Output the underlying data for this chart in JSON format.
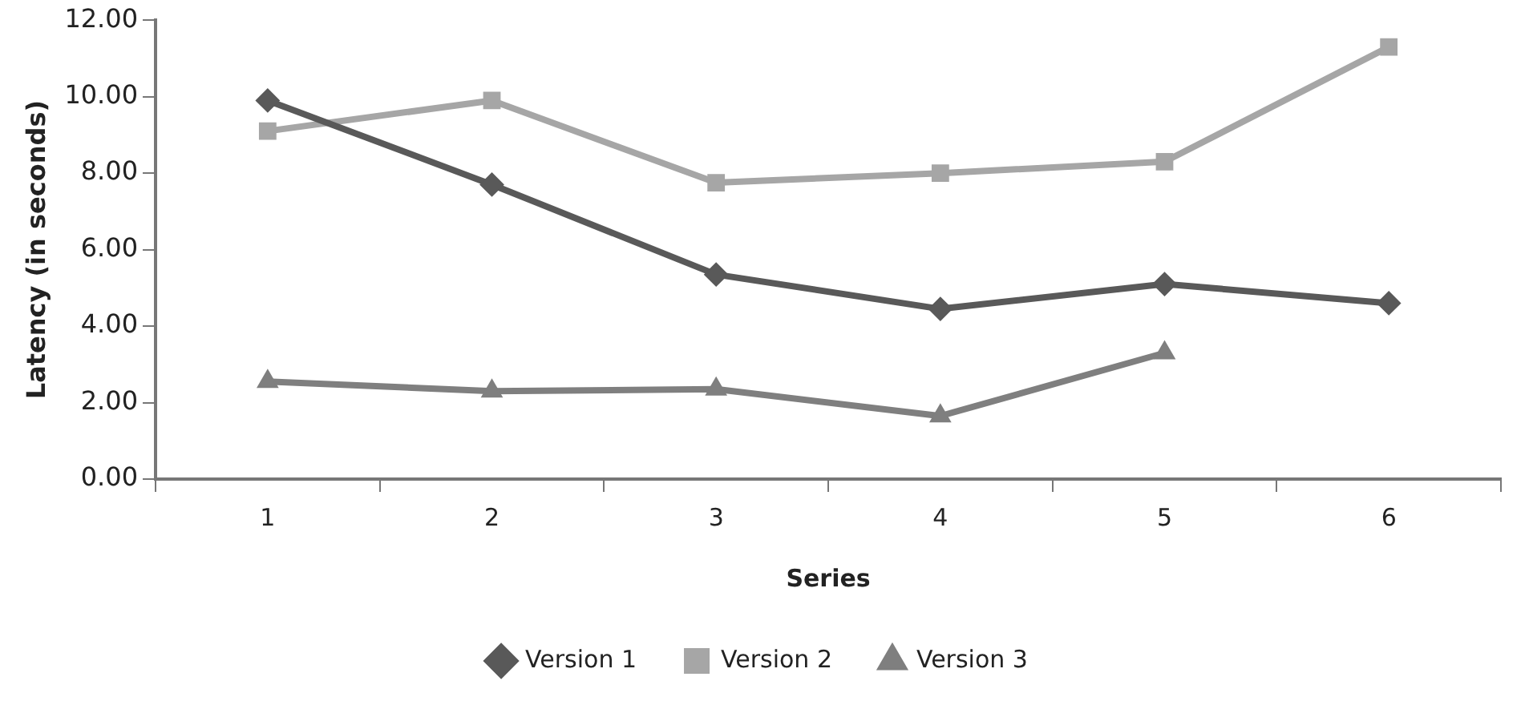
{
  "chart_data": {
    "type": "line",
    "xlabel": "Series",
    "ylabel": "Latency (in seconds)",
    "categories": [
      "1",
      "2",
      "3",
      "4",
      "5",
      "6"
    ],
    "series": [
      {
        "name": "Version 1",
        "color": "#595959",
        "marker": "diamond",
        "values": [
          9.9,
          7.7,
          5.35,
          4.45,
          5.1,
          4.6
        ]
      },
      {
        "name": "Version 2",
        "color": "#a6a6a6",
        "marker": "square",
        "values": [
          9.1,
          9.9,
          7.75,
          8.0,
          8.3,
          11.3
        ]
      },
      {
        "name": "Version 3",
        "color": "#7f7f7f",
        "marker": "triangle",
        "values": [
          2.55,
          2.3,
          2.35,
          1.65,
          3.3,
          null
        ]
      }
    ],
    "ylim": [
      0,
      12
    ],
    "yticks": [
      {
        "value": 0,
        "label": "0.00"
      },
      {
        "value": 2,
        "label": "2.00"
      },
      {
        "value": 4,
        "label": "4.00"
      },
      {
        "value": 6,
        "label": "6.00"
      },
      {
        "value": 8,
        "label": "8.00"
      },
      {
        "value": 10,
        "label": "10.00"
      },
      {
        "value": 12,
        "label": "12.00"
      }
    ],
    "grid": false,
    "legend": "bottom",
    "line_style": "solid"
  }
}
